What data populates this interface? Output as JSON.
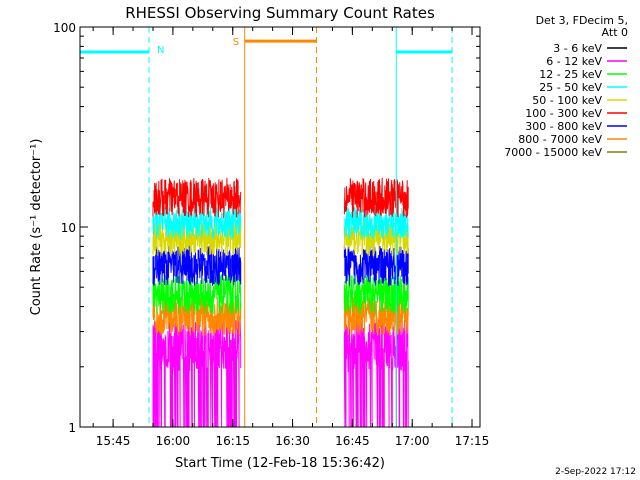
{
  "chart_data": {
    "type": "line",
    "title": "RHESSI Observing Summary Count Rates",
    "xlabel": "Start Time (12-Feb-18 15:36:42)",
    "ylabel": "Count Rate (s⁻¹ detector⁻¹)",
    "y_scale": "log",
    "ylim": [
      1,
      100
    ],
    "y_ticks": [
      {
        "value": 1,
        "label": "1"
      },
      {
        "value": 10,
        "label": "10"
      },
      {
        "value": 100,
        "label": "100"
      }
    ],
    "xlim": [
      "15:36:42",
      "17:17:00"
    ],
    "x_ticks": [
      {
        "time": "15:45",
        "label": "15:45"
      },
      {
        "time": "16:00",
        "label": "16:00"
      },
      {
        "time": "16:15",
        "label": "16:15"
      },
      {
        "time": "16:30",
        "label": "16:30"
      },
      {
        "time": "16:45",
        "label": "16:45"
      },
      {
        "time": "17:00",
        "label": "17:00"
      },
      {
        "time": "17:15",
        "label": "17:15"
      }
    ],
    "legend": {
      "placement": "right",
      "header_line1": "Det 3, FDecim 5,",
      "header_line2": "Att 0"
    },
    "series": [
      {
        "name": "3 - 6 keV",
        "color": "#000000"
      },
      {
        "name": "6 - 12 keV",
        "color": "#ff00ff"
      },
      {
        "name": "12 - 25 keV",
        "color": "#00ff00"
      },
      {
        "name": "25 - 50 keV",
        "color": "#00ffff"
      },
      {
        "name": "50 - 100 keV",
        "color": "#d8d800"
      },
      {
        "name": "100 - 300 keV",
        "color": "#ff0000"
      },
      {
        "name": "300 - 800 keV",
        "color": "#0000ff"
      },
      {
        "name": "800 - 7000 keV",
        "color": "#ff8800"
      },
      {
        "name": "7000 - 15000 keV",
        "color": "#808000"
      }
    ],
    "data_intervals": [
      {
        "start": "15:55",
        "end": "16:17"
      },
      {
        "start": "16:43",
        "end": "16:59"
      }
    ],
    "series_levels": [
      {
        "name": "6 - 12 keV",
        "center": 2.6,
        "spread": 0.14
      },
      {
        "name": "800 - 7000 keV",
        "center": 3.6,
        "spread": 0.1
      },
      {
        "name": "12 - 25 keV",
        "center": 4.6,
        "spread": 0.1
      },
      {
        "name": "300 - 800 keV",
        "center": 6.4,
        "spread": 0.1
      },
      {
        "name": "50 - 100 keV",
        "center": 8.8,
        "spread": 0.09
      },
      {
        "name": "25 - 50 keV",
        "center": 10.5,
        "spread": 0.08
      },
      {
        "name": "100 - 300 keV",
        "center": 14.0,
        "spread": 0.1
      }
    ],
    "annotations": {
      "night": {
        "label": "N",
        "color": "#00ffff",
        "level": 75,
        "bars": [
          {
            "start": "15:36:42",
            "end": "15:54"
          },
          {
            "start": "16:56",
            "end": "17:10"
          }
        ],
        "solid_lines": [
          "15:36:42",
          "16:56"
        ],
        "dashed_lines": [
          "15:54",
          "17:10"
        ]
      },
      "saa": {
        "label": "S",
        "color": "#ff8800",
        "level": 85,
        "bars": [
          {
            "start": "16:18",
            "end": "16:36"
          }
        ],
        "solid_lines": [
          "16:18"
        ],
        "dashed_lines": [
          "16:36"
        ]
      }
    },
    "grid": false
  },
  "footer": {
    "timestamp": "2-Sep-2022 17:12"
  }
}
